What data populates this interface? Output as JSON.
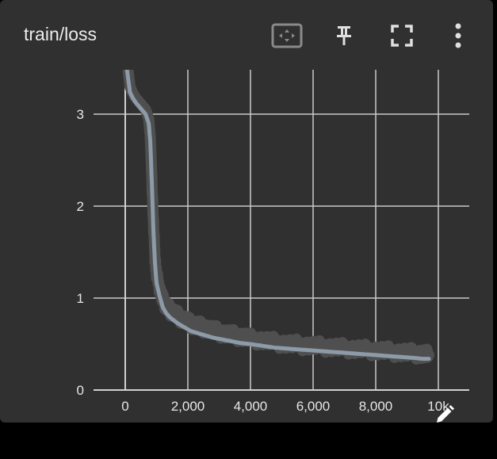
{
  "card": {
    "title": "train/loss",
    "toolbar": [
      {
        "icon": "fit-domain-icon"
      },
      {
        "icon": "pin-icon"
      },
      {
        "icon": "fullscreen-icon"
      },
      {
        "icon": "more-vert-icon"
      }
    ],
    "edit_icon": "pencil-icon"
  },
  "colors": {
    "background": "#303030",
    "grid": "#c9c9c9",
    "axis": "#d0d0d0",
    "smoothed_line": "#8d9aa8",
    "raw_line": "#4f4f4f"
  },
  "chart_data": {
    "type": "line",
    "title": "train/loss",
    "xlabel": "",
    "ylabel": "",
    "xlim": [
      -1000,
      11000
    ],
    "ylim": [
      0,
      3.5
    ],
    "x_ticks": [
      0,
      2000,
      4000,
      6000,
      8000,
      10000
    ],
    "x_tick_labels": [
      "0",
      "2,000",
      "4,000",
      "6,000",
      "8,000",
      "10k"
    ],
    "y_ticks": [
      0,
      1,
      2,
      3
    ],
    "y_tick_labels": [
      "0",
      "1",
      "2",
      "3"
    ],
    "grid": true,
    "series": [
      {
        "role": "raw",
        "x": [
          50,
          150,
          250,
          350,
          450,
          550,
          650,
          750,
          800,
          850,
          900,
          950,
          1000,
          1100,
          1200,
          1300,
          1400,
          1500,
          1700,
          1900,
          2100,
          2300,
          2500,
          2800,
          3100,
          3400,
          3700,
          4000,
          4400,
          4800,
          5200,
          5600,
          6000,
          6400,
          6800,
          7200,
          7600,
          8000,
          8400,
          8800,
          9200,
          9500,
          9700
        ],
        "values": [
          3.6,
          3.3,
          3.22,
          3.17,
          3.13,
          3.09,
          3.05,
          2.95,
          2.75,
          2.3,
          1.8,
          1.45,
          1.25,
          1.1,
          0.98,
          0.92,
          0.88,
          0.85,
          0.8,
          0.76,
          0.72,
          0.7,
          0.68,
          0.65,
          0.62,
          0.6,
          0.58,
          0.56,
          0.54,
          0.52,
          0.5,
          0.49,
          0.48,
          0.47,
          0.46,
          0.45,
          0.44,
          0.43,
          0.42,
          0.41,
          0.4,
          0.39,
          0.38
        ]
      },
      {
        "role": "smoothed",
        "x": [
          50,
          150,
          250,
          350,
          450,
          550,
          650,
          750,
          800,
          850,
          900,
          950,
          1000,
          1100,
          1200,
          1300,
          1400,
          1500,
          1700,
          1900,
          2100,
          2300,
          2500,
          2800,
          3100,
          3400,
          3700,
          4000,
          4400,
          4800,
          5200,
          5600,
          6000,
          6400,
          6800,
          7200,
          7600,
          8000,
          8400,
          8800,
          9200,
          9500,
          9700
        ],
        "values": [
          3.5,
          3.24,
          3.17,
          3.12,
          3.08,
          3.04,
          3.0,
          2.9,
          2.7,
          2.25,
          1.72,
          1.38,
          1.16,
          1.02,
          0.9,
          0.84,
          0.8,
          0.77,
          0.72,
          0.68,
          0.64,
          0.62,
          0.6,
          0.57,
          0.55,
          0.53,
          0.51,
          0.5,
          0.48,
          0.46,
          0.45,
          0.44,
          0.43,
          0.42,
          0.41,
          0.4,
          0.39,
          0.38,
          0.37,
          0.36,
          0.35,
          0.34,
          0.34
        ]
      }
    ]
  }
}
